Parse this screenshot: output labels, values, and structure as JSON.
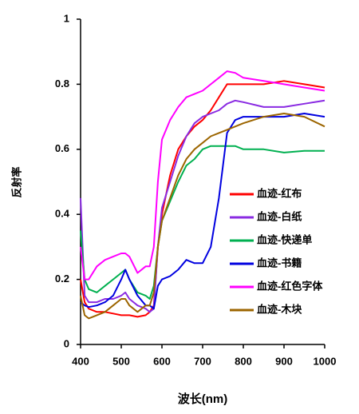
{
  "chart_data": {
    "type": "line",
    "x_label": "波长(nm)",
    "y_label": "反射率",
    "x": [
      400,
      410,
      420,
      440,
      460,
      480,
      500,
      510,
      520,
      540,
      560,
      570,
      580,
      590,
      600,
      620,
      640,
      660,
      680,
      700,
      720,
      740,
      760,
      780,
      800,
      850,
      900,
      950,
      1000
    ],
    "series": [
      {
        "name": "血迹-红布",
        "color": "#ff0000",
        "values": [
          0.2,
          0.13,
          0.11,
          0.1,
          0.1,
          0.095,
          0.09,
          0.09,
          0.09,
          0.085,
          0.09,
          0.1,
          0.12,
          0.3,
          0.4,
          0.52,
          0.6,
          0.64,
          0.67,
          0.69,
          0.72,
          0.76,
          0.8,
          0.8,
          0.8,
          0.8,
          0.81,
          0.8,
          0.79
        ]
      },
      {
        "name": "血迹-白纸",
        "color": "#8a2be2",
        "values": [
          0.45,
          0.15,
          0.13,
          0.13,
          0.14,
          0.14,
          0.15,
          0.16,
          0.14,
          0.12,
          0.11,
          0.1,
          0.11,
          0.3,
          0.42,
          0.5,
          0.58,
          0.64,
          0.68,
          0.7,
          0.71,
          0.72,
          0.74,
          0.75,
          0.745,
          0.73,
          0.73,
          0.74,
          0.75
        ]
      },
      {
        "name": "血迹-快递单",
        "color": "#00b050",
        "values": [
          0.35,
          0.2,
          0.17,
          0.16,
          0.18,
          0.2,
          0.22,
          0.23,
          0.2,
          0.16,
          0.15,
          0.14,
          0.18,
          0.3,
          0.38,
          0.44,
          0.5,
          0.55,
          0.57,
          0.6,
          0.61,
          0.61,
          0.61,
          0.61,
          0.6,
          0.6,
          0.59,
          0.595,
          0.595
        ]
      },
      {
        "name": "血迹-书籍",
        "color": "#0000e0",
        "values": [
          0.13,
          0.12,
          0.115,
          0.12,
          0.13,
          0.15,
          0.2,
          0.23,
          0.2,
          0.15,
          0.12,
          0.12,
          0.11,
          0.18,
          0.2,
          0.21,
          0.23,
          0.26,
          0.25,
          0.25,
          0.3,
          0.45,
          0.65,
          0.69,
          0.7,
          0.7,
          0.7,
          0.71,
          0.7
        ]
      },
      {
        "name": "血迹-红色字体",
        "color": "#ff00ff",
        "values": [
          0.3,
          0.2,
          0.2,
          0.24,
          0.26,
          0.27,
          0.28,
          0.28,
          0.27,
          0.22,
          0.24,
          0.24,
          0.3,
          0.5,
          0.63,
          0.69,
          0.73,
          0.76,
          0.77,
          0.78,
          0.8,
          0.82,
          0.84,
          0.835,
          0.82,
          0.81,
          0.8,
          0.79,
          0.78
        ]
      },
      {
        "name": "血迹-木块",
        "color": "#9c6500",
        "values": [
          0.15,
          0.09,
          0.08,
          0.09,
          0.1,
          0.12,
          0.14,
          0.14,
          0.12,
          0.1,
          0.12,
          0.12,
          0.16,
          0.3,
          0.38,
          0.45,
          0.52,
          0.57,
          0.6,
          0.62,
          0.64,
          0.65,
          0.66,
          0.67,
          0.68,
          0.7,
          0.71,
          0.7,
          0.67
        ]
      }
    ],
    "xlim": [
      400,
      1000
    ],
    "xticks": [
      400,
      500,
      600,
      700,
      800,
      900,
      1000
    ],
    "ylim": [
      0,
      1
    ],
    "yticks": [
      0,
      0.2,
      0.4,
      0.6,
      0.8,
      1
    ],
    "grid": false
  }
}
